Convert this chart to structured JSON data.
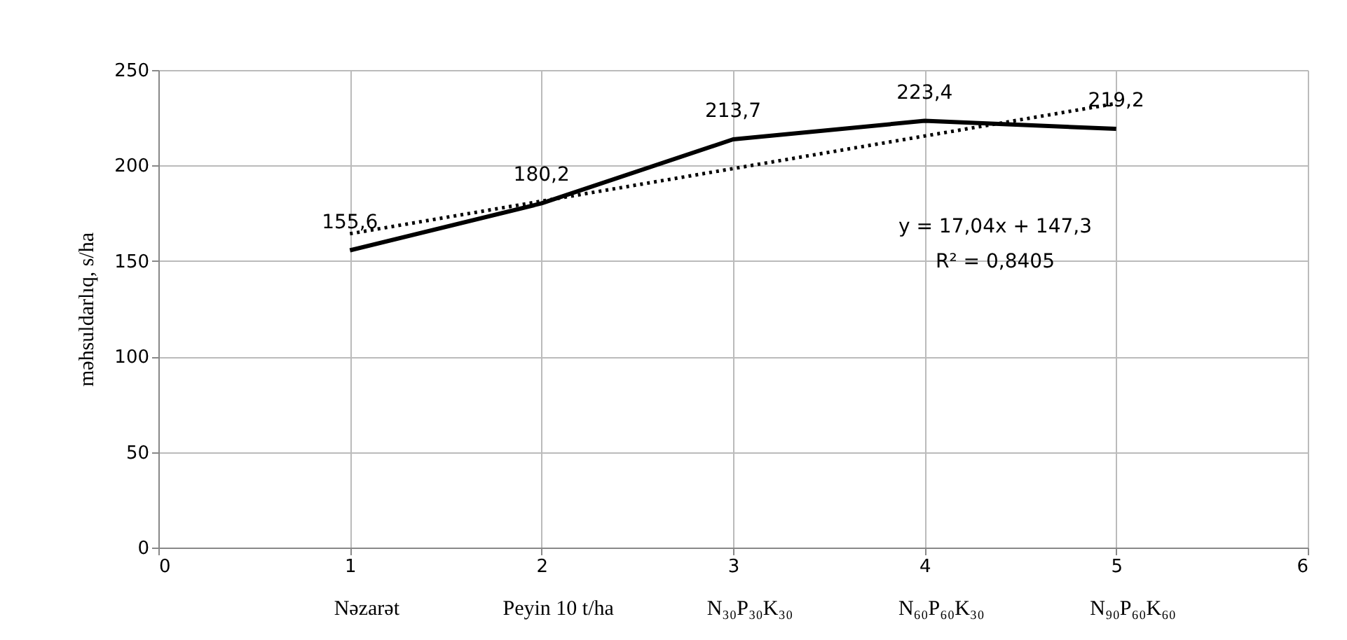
{
  "chart_data": {
    "type": "line",
    "ylabel": "məhsuldarlıq, s/ha",
    "xlim": [
      0,
      6
    ],
    "xticks": [
      0,
      1,
      2,
      3,
      4,
      5,
      6
    ],
    "ylim": [
      0,
      250
    ],
    "yticks": [
      0,
      50,
      100,
      150,
      200,
      250
    ],
    "grid": true,
    "marker": "none",
    "series": [
      {
        "color": "#000000",
        "x": [
          1,
          2,
          3,
          4,
          5
        ],
        "values": [
          155.6,
          180.2,
          213.7,
          223.4,
          219.2
        ],
        "value_labels": [
          "155,6",
          "180,2",
          "213,7",
          "223,4",
          "219,2"
        ],
        "line_style": "solid"
      },
      {
        "type": "line",
        "color": "#000000",
        "x": [
          1,
          5
        ],
        "values": [
          164.3,
          232.5
        ],
        "line_style": "dotted"
      }
    ],
    "annotations": [
      "Nəzarət",
      "Peyin 10 t/ha",
      "N₃₀P₃₀K₃₀",
      "N₆₀P₆₀K₃₀",
      "N₉₀P₆₀K₆₀",
      "y = 17,04x + 147,3",
      "R² = 0,8405"
    ]
  }
}
